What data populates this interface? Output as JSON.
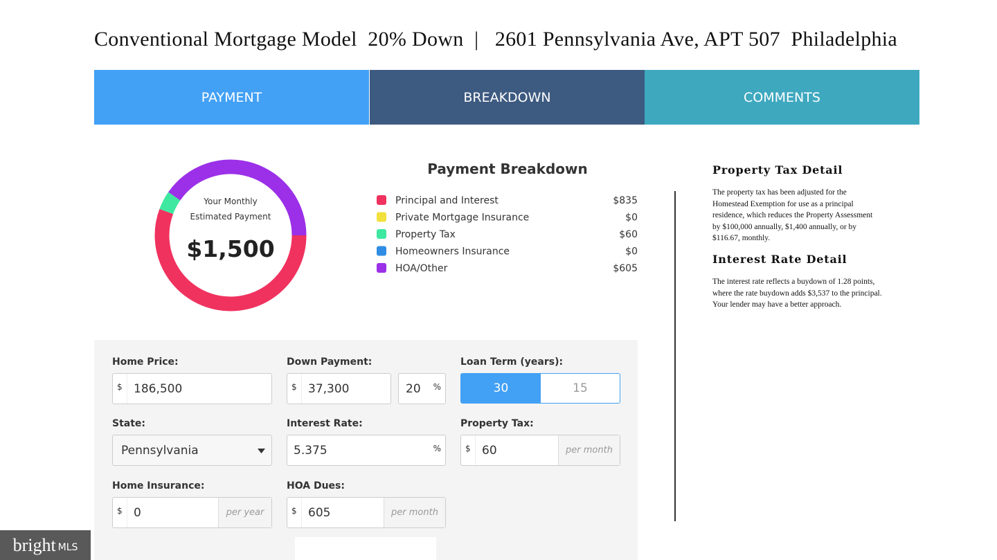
{
  "header": {
    "title": "Conventional Mortgage Model  20% Down  |   2601 Pennsylvania Ave, APT 507  Philadelphia"
  },
  "tabs": [
    "PAYMENT",
    "BREAKDOWN",
    "COMMENTS"
  ],
  "donut": {
    "caption_line1": "Your Monthly",
    "caption_line2": "Estimated Payment",
    "total": "$1,500"
  },
  "breakdown": {
    "title": "Payment Breakdown",
    "labels": [
      "Principal and Interest",
      "Private Mortgage Insurance",
      "Property Tax",
      "Homeowners Insurance",
      "HOA/Other"
    ],
    "values": [
      835,
      0,
      60,
      0,
      605
    ],
    "value_labels": [
      "$835",
      "$0",
      "$60",
      "$0",
      "$605"
    ],
    "colors": [
      "#f0325f",
      "#f2e03c",
      "#3ee8a0",
      "#2f8de4",
      "#9b30e8"
    ]
  },
  "comments": [
    {
      "title": "Property Tax Detail",
      "text": "The property tax has been adjusted for the Homestead Exemption for use as a principal residence, which reduces the Property Assessment by $100,000 annually, $1,400 annually, or by $116.67, monthly."
    },
    {
      "title": "Interest Rate Detail",
      "text": "The interest rate reflects a  buydown of 1.28 points, where the rate buydown adds $3,537 to the principal. Your lender may have a better approach."
    }
  ],
  "form": {
    "home_price": {
      "label": "Home Price:",
      "prefix": "$",
      "value": "186,500"
    },
    "down_payment": {
      "label": "Down Payment:",
      "prefix": "$",
      "value": "37,300",
      "percent": "20",
      "percent_suffix": "%"
    },
    "loan_term": {
      "label": "Loan Term (years):",
      "options": [
        "30",
        "15"
      ]
    },
    "state": {
      "label": "State:",
      "value": "Pennsylvania"
    },
    "interest_rate": {
      "label": "Interest Rate:",
      "value": "5.375",
      "suffix": "%"
    },
    "property_tax": {
      "label": "Property Tax:",
      "prefix": "$",
      "value": "60",
      "suffix": "per month"
    },
    "home_insurance": {
      "label": "Home Insurance:",
      "prefix": "$",
      "value": "0",
      "suffix": "per year"
    },
    "hoa_dues": {
      "label": "HOA Dues:",
      "prefix": "$",
      "value": "605",
      "suffix": "per month"
    }
  },
  "watermark": {
    "brand": "bright",
    "suffix": "MLS"
  }
}
